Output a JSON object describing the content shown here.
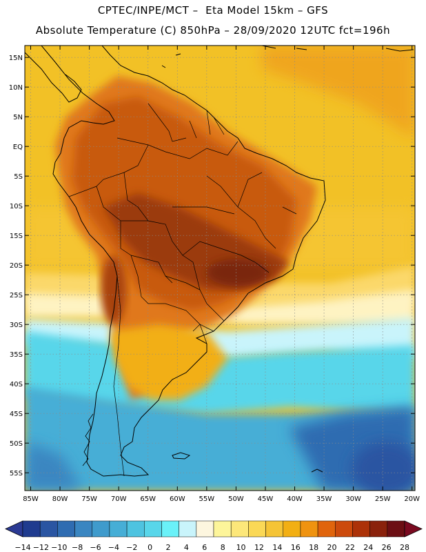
{
  "header": {
    "title_line1": "CPTEC/INPE/MCT –  Eta Model 15km – GFS",
    "title_line2": "Absolute Temperature (C) 850hPa – 28/09/2020 12UTC fct=196h"
  },
  "map": {
    "lat_labels": [
      "15N",
      "10N",
      "5N",
      "EQ",
      "5S",
      "10S",
      "15S",
      "20S",
      "25S",
      "30S",
      "35S",
      "40S",
      "45S",
      "50S",
      "55S"
    ],
    "lon_labels": [
      "85W",
      "80W",
      "75W",
      "70W",
      "65W",
      "60W",
      "55W",
      "50W",
      "45W",
      "40W",
      "35W",
      "30W",
      "25W",
      "20W"
    ]
  },
  "colorbar": {
    "labels": [
      "−14",
      "−12",
      "−10",
      "−8",
      "−6",
      "−4",
      "−2",
      "0",
      "2",
      "4",
      "6",
      "8",
      "10",
      "12",
      "14",
      "16",
      "18",
      "20",
      "22",
      "24",
      "26",
      "28"
    ],
    "colors": [
      "#1f3b8f",
      "#2a55a2",
      "#2f6cb1",
      "#3a86c1",
      "#3f9bcc",
      "#46aed6",
      "#4ec3e0",
      "#58d6ea",
      "#6af1f8",
      "#c9f4fb",
      "#fdf6df",
      "#fdf59a",
      "#fce77a",
      "#fad856",
      "#f5c436",
      "#f2af13",
      "#ef9310",
      "#e0640c",
      "#cc4a0c",
      "#ac3208",
      "#8a220c",
      "#6c0f14"
    ],
    "under_color": "#2b3a94",
    "over_color": "#7a0a20"
  },
  "colors": {
    "ocean_tropical": "#f2c126",
    "land_warm": "#c85a11",
    "land_hot": "#8a3008",
    "subtropical": "#f5b21b",
    "temperate": "#fde08e",
    "cool": "#58d6ea",
    "cold": "#3aa3d2",
    "coastline": "#000000",
    "graticule": "#8a8a8a"
  }
}
